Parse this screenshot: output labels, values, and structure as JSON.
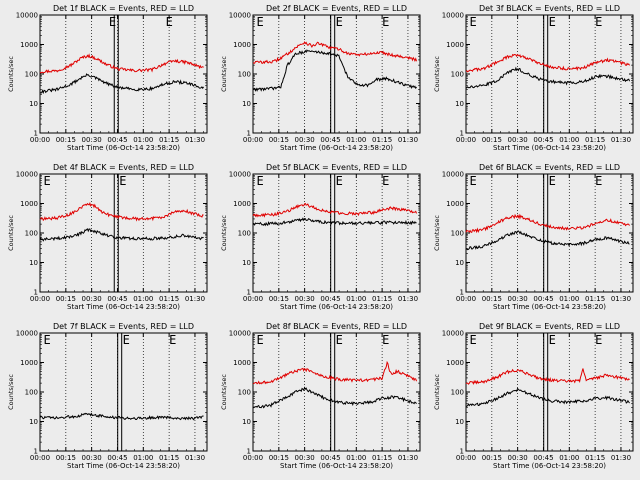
{
  "figure": {
    "x_label": "Start Time (06-Oct-14 23:58:20)",
    "y_label": "Counts/sec",
    "x_tick_labels": [
      "00:00",
      "00:15",
      "00:30",
      "00:45",
      "01:00",
      "01:15",
      "01:30"
    ],
    "y_tick_labels": [
      "1",
      "10",
      "100",
      "1000",
      "10000"
    ],
    "series_colors": {
      "events": "#000000",
      "lld": "#e00000"
    },
    "flag_letter": "E",
    "background": "#ececec"
  },
  "chart_data": [
    {
      "type": "line",
      "detector": "1f",
      "title": "Det 1f BLACK = Events, RED = LLD",
      "xlabel": "Start Time (06-Oct-14 23:58:20)",
      "ylabel": "Counts/sec",
      "x_range_min": [
        0,
        97
      ],
      "ylim": [
        1,
        10000
      ],
      "yscale": "log",
      "x_ticks_min": [
        0,
        15,
        30,
        45,
        60,
        75,
        90
      ],
      "events_min": [
        [
          0,
          25
        ],
        [
          10,
          30
        ],
        [
          18,
          45
        ],
        [
          24,
          75
        ],
        [
          28,
          95
        ],
        [
          33,
          70
        ],
        [
          38,
          50
        ],
        [
          45,
          35
        ],
        [
          55,
          30
        ],
        [
          65,
          32
        ],
        [
          72,
          45
        ],
        [
          78,
          55
        ],
        [
          85,
          50
        ],
        [
          90,
          40
        ],
        [
          95,
          33
        ]
      ],
      "lld_min": [
        [
          0,
          120
        ],
        [
          10,
          130
        ],
        [
          18,
          200
        ],
        [
          24,
          350
        ],
        [
          28,
          420
        ],
        [
          33,
          330
        ],
        [
          38,
          220
        ],
        [
          45,
          150
        ],
        [
          55,
          130
        ],
        [
          65,
          140
        ],
        [
          72,
          220
        ],
        [
          78,
          280
        ],
        [
          85,
          250
        ],
        [
          90,
          200
        ],
        [
          95,
          160
        ]
      ],
      "flags_min": [
        40,
        73
      ],
      "band_min": 44
    },
    {
      "type": "line",
      "detector": "2f",
      "title": "Det 2f BLACK = Events, RED = LLD",
      "xlabel": "Start Time (06-Oct-14 23:58:20)",
      "ylabel": "Counts/sec",
      "x_range_min": [
        0,
        97
      ],
      "ylim": [
        1,
        10000
      ],
      "yscale": "log",
      "x_ticks_min": [
        0,
        15,
        30,
        45,
        60,
        75,
        90
      ],
      "events_min": [
        [
          0,
          30
        ],
        [
          10,
          32
        ],
        [
          16,
          35
        ],
        [
          20,
          200
        ],
        [
          25,
          500
        ],
        [
          32,
          600
        ],
        [
          38,
          550
        ],
        [
          44,
          500
        ],
        [
          50,
          400
        ],
        [
          55,
          80
        ],
        [
          60,
          45
        ],
        [
          67,
          42
        ],
        [
          72,
          65
        ],
        [
          78,
          70
        ],
        [
          85,
          50
        ],
        [
          90,
          40
        ],
        [
          95,
          35
        ]
      ],
      "lld_min": [
        [
          0,
          250
        ],
        [
          12,
          260
        ],
        [
          18,
          400
        ],
        [
          25,
          800
        ],
        [
          30,
          1200
        ],
        [
          34,
          900
        ],
        [
          38,
          1100
        ],
        [
          44,
          800
        ],
        [
          50,
          700
        ],
        [
          55,
          500
        ],
        [
          62,
          450
        ],
        [
          70,
          500
        ],
        [
          75,
          550
        ],
        [
          80,
          450
        ],
        [
          88,
          380
        ],
        [
          95,
          300
        ]
      ],
      "flags_min": [
        2,
        48,
        75
      ],
      "band_min": 46
    },
    {
      "type": "line",
      "detector": "3f",
      "title": "Det 3f BLACK = Events, RED = LLD",
      "xlabel": "Start Time (06-Oct-14 23:58:20)",
      "ylabel": "Counts/sec",
      "x_range_min": [
        0,
        97
      ],
      "ylim": [
        1,
        10000
      ],
      "yscale": "log",
      "x_ticks_min": [
        0,
        15,
        30,
        45,
        60,
        75,
        90
      ],
      "events_min": [
        [
          0,
          35
        ],
        [
          10,
          40
        ],
        [
          18,
          60
        ],
        [
          25,
          120
        ],
        [
          30,
          150
        ],
        [
          36,
          100
        ],
        [
          42,
          70
        ],
        [
          50,
          55
        ],
        [
          60,
          50
        ],
        [
          68,
          55
        ],
        [
          75,
          80
        ],
        [
          82,
          85
        ],
        [
          88,
          70
        ],
        [
          95,
          60
        ]
      ],
      "lld_min": [
        [
          0,
          130
        ],
        [
          10,
          150
        ],
        [
          18,
          250
        ],
        [
          24,
          380
        ],
        [
          30,
          450
        ],
        [
          36,
          340
        ],
        [
          42,
          230
        ],
        [
          50,
          170
        ],
        [
          60,
          150
        ],
        [
          68,
          160
        ],
        [
          75,
          240
        ],
        [
          82,
          300
        ],
        [
          88,
          260
        ],
        [
          95,
          200
        ]
      ],
      "flags_min": [
        2,
        48,
        75
      ],
      "band_min": 46
    },
    {
      "type": "line",
      "detector": "4f",
      "title": "Det 4f BLACK = Events, RED = LLD",
      "xlabel": "Start Time (06-Oct-14 23:58:20)",
      "ylabel": "Counts/sec",
      "x_range_min": [
        0,
        97
      ],
      "ylim": [
        1,
        10000
      ],
      "yscale": "log",
      "x_ticks_min": [
        0,
        15,
        30,
        45,
        60,
        75,
        90
      ],
      "events_min": [
        [
          0,
          60
        ],
        [
          10,
          65
        ],
        [
          18,
          75
        ],
        [
          24,
          100
        ],
        [
          28,
          130
        ],
        [
          33,
          110
        ],
        [
          38,
          85
        ],
        [
          45,
          70
        ],
        [
          55,
          65
        ],
        [
          65,
          65
        ],
        [
          75,
          70
        ],
        [
          82,
          85
        ],
        [
          88,
          75
        ],
        [
          95,
          65
        ]
      ],
      "lld_min": [
        [
          0,
          300
        ],
        [
          10,
          320
        ],
        [
          18,
          450
        ],
        [
          24,
          750
        ],
        [
          28,
          1000
        ],
        [
          32,
          800
        ],
        [
          36,
          500
        ],
        [
          42,
          380
        ],
        [
          50,
          320
        ],
        [
          60,
          300
        ],
        [
          70,
          330
        ],
        [
          78,
          500
        ],
        [
          83,
          600
        ],
        [
          88,
          480
        ],
        [
          95,
          380
        ]
      ],
      "flags_min": [
        2,
        46
      ],
      "band_min": 44
    },
    {
      "type": "line",
      "detector": "5f",
      "title": "Det 5f BLACK = Events, RED = LLD",
      "xlabel": "Start Time (06-Oct-14 23:58:20)",
      "ylabel": "Counts/sec",
      "x_range_min": [
        0,
        97
      ],
      "ylim": [
        1,
        10000
      ],
      "yscale": "log",
      "x_ticks_min": [
        0,
        15,
        30,
        45,
        60,
        75,
        90
      ],
      "events_min": [
        [
          0,
          200
        ],
        [
          12,
          210
        ],
        [
          20,
          230
        ],
        [
          26,
          270
        ],
        [
          30,
          300
        ],
        [
          36,
          260
        ],
        [
          42,
          230
        ],
        [
          50,
          220
        ],
        [
          60,
          220
        ],
        [
          70,
          220
        ],
        [
          78,
          230
        ],
        [
          85,
          230
        ],
        [
          95,
          220
        ]
      ],
      "lld_min": [
        [
          0,
          400
        ],
        [
          12,
          420
        ],
        [
          20,
          550
        ],
        [
          26,
          800
        ],
        [
          30,
          950
        ],
        [
          36,
          700
        ],
        [
          42,
          550
        ],
        [
          50,
          480
        ],
        [
          60,
          450
        ],
        [
          70,
          500
        ],
        [
          76,
          650
        ],
        [
          81,
          700
        ],
        [
          88,
          600
        ],
        [
          95,
          500
        ]
      ],
      "flags_min": [
        2,
        48,
        75
      ],
      "band_min": 46
    },
    {
      "type": "line",
      "detector": "6f",
      "title": "Det 6f BLACK = Events, RED = LLD",
      "xlabel": "Start Time (06-Oct-14 23:58:20)",
      "ylabel": "Counts/sec",
      "x_range_min": [
        0,
        97
      ],
      "ylim": [
        1,
        10000
      ],
      "yscale": "log",
      "x_ticks_min": [
        0,
        15,
        30,
        45,
        60,
        75,
        90
      ],
      "events_min": [
        [
          0,
          30
        ],
        [
          10,
          35
        ],
        [
          18,
          55
        ],
        [
          25,
          90
        ],
        [
          30,
          110
        ],
        [
          36,
          80
        ],
        [
          42,
          60
        ],
        [
          50,
          45
        ],
        [
          60,
          40
        ],
        [
          68,
          45
        ],
        [
          75,
          60
        ],
        [
          82,
          70
        ],
        [
          88,
          55
        ],
        [
          95,
          45
        ]
      ],
      "lld_min": [
        [
          0,
          110
        ],
        [
          10,
          130
        ],
        [
          18,
          220
        ],
        [
          24,
          330
        ],
        [
          30,
          380
        ],
        [
          36,
          300
        ],
        [
          42,
          210
        ],
        [
          50,
          160
        ],
        [
          60,
          140
        ],
        [
          68,
          150
        ],
        [
          75,
          210
        ],
        [
          82,
          280
        ],
        [
          88,
          230
        ],
        [
          95,
          180
        ]
      ],
      "flags_min": [
        2,
        48,
        75
      ],
      "band_min": 46
    },
    {
      "type": "line",
      "detector": "7f",
      "title": "Det 7f BLACK = Events, RED = LLD",
      "xlabel": "Start Time (06-Oct-14 23:58:20)",
      "ylabel": "Counts/sec",
      "x_range_min": [
        0,
        97
      ],
      "ylim": [
        1,
        10000
      ],
      "yscale": "log",
      "x_ticks_min": [
        0,
        15,
        30,
        45,
        60,
        75,
        90
      ],
      "events_min": [
        [
          0,
          14
        ],
        [
          10,
          13
        ],
        [
          20,
          15
        ],
        [
          28,
          18
        ],
        [
          34,
          16
        ],
        [
          40,
          14
        ],
        [
          50,
          13
        ],
        [
          60,
          13
        ],
        [
          70,
          14
        ],
        [
          80,
          13
        ],
        [
          90,
          13
        ],
        [
          95,
          14
        ]
      ],
      "lld_min": [],
      "flags_min": [
        2,
        48,
        75
      ],
      "band_min": 46
    },
    {
      "type": "line",
      "detector": "8f",
      "title": "Det 8f BLACK = Events, RED = LLD",
      "xlabel": "Start Time (06-Oct-14 23:58:20)",
      "ylabel": "Counts/sec",
      "x_range_min": [
        0,
        97
      ],
      "ylim": [
        1,
        10000
      ],
      "yscale": "log",
      "x_ticks_min": [
        0,
        15,
        30,
        45,
        60,
        75,
        90
      ],
      "events_min": [
        [
          0,
          30
        ],
        [
          10,
          35
        ],
        [
          18,
          60
        ],
        [
          25,
          100
        ],
        [
          30,
          130
        ],
        [
          36,
          90
        ],
        [
          42,
          60
        ],
        [
          50,
          45
        ],
        [
          60,
          40
        ],
        [
          68,
          45
        ],
        [
          75,
          60
        ],
        [
          82,
          70
        ],
        [
          88,
          55
        ],
        [
          95,
          40
        ]
      ],
      "lld_min": [
        [
          0,
          200
        ],
        [
          10,
          220
        ],
        [
          18,
          350
        ],
        [
          24,
          500
        ],
        [
          30,
          600
        ],
        [
          36,
          450
        ],
        [
          42,
          330
        ],
        [
          50,
          270
        ],
        [
          60,
          250
        ],
        [
          68,
          260
        ],
        [
          75,
          300
        ],
        [
          78,
          1000
        ],
        [
          80,
          420
        ],
        [
          84,
          500
        ],
        [
          88,
          400
        ],
        [
          95,
          250
        ]
      ],
      "flags_min": [
        2,
        48,
        75
      ],
      "band_min": 46
    },
    {
      "type": "line",
      "detector": "9f",
      "title": "Det 9f BLACK = Events, RED = LLD",
      "xlabel": "Start Time (06-Oct-14 23:58:20)",
      "ylabel": "Counts/sec",
      "x_range_min": [
        0,
        97
      ],
      "ylim": [
        1,
        10000
      ],
      "yscale": "log",
      "x_ticks_min": [
        0,
        15,
        30,
        45,
        60,
        75,
        90
      ],
      "events_min": [
        [
          0,
          35
        ],
        [
          10,
          40
        ],
        [
          18,
          60
        ],
        [
          25,
          95
        ],
        [
          30,
          120
        ],
        [
          36,
          90
        ],
        [
          42,
          65
        ],
        [
          50,
          50
        ],
        [
          60,
          45
        ],
        [
          68,
          50
        ],
        [
          75,
          60
        ],
        [
          82,
          65
        ],
        [
          88,
          55
        ],
        [
          95,
          45
        ]
      ],
      "lld_min": [
        [
          0,
          200
        ],
        [
          10,
          220
        ],
        [
          18,
          320
        ],
        [
          24,
          480
        ],
        [
          30,
          550
        ],
        [
          36,
          420
        ],
        [
          42,
          300
        ],
        [
          50,
          250
        ],
        [
          60,
          230
        ],
        [
          66,
          240
        ],
        [
          68,
          600
        ],
        [
          70,
          250
        ],
        [
          75,
          300
        ],
        [
          82,
          380
        ],
        [
          88,
          320
        ],
        [
          95,
          260
        ]
      ],
      "flags_min": [
        2,
        48,
        75
      ],
      "band_min": 46
    }
  ]
}
